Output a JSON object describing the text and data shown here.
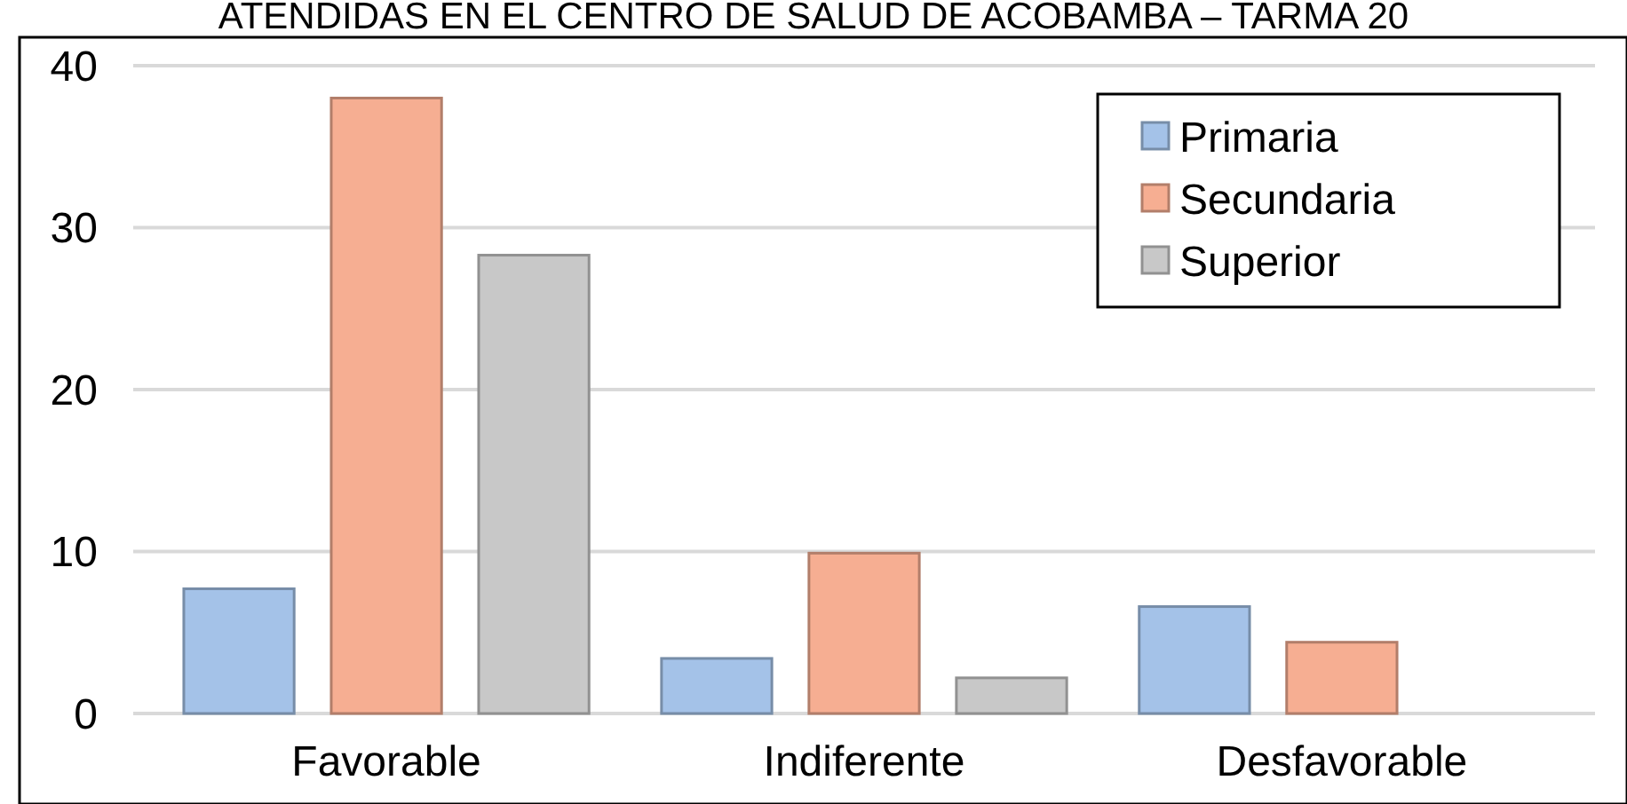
{
  "chart_data": {
    "type": "bar",
    "title": "ATENDIDAS EN EL CENTRO DE SALUD DE ACOBAMBA – TARMA 20",
    "categories": [
      "Favorable",
      "Indiferente",
      "Desfavorable"
    ],
    "series": [
      {
        "name": "Primaria",
        "color": "#a4c2e8",
        "values": [
          7.7,
          3.4,
          6.6
        ]
      },
      {
        "name": "Secundaria",
        "color": "#f6ae92",
        "values": [
          38,
          9.9,
          4.4
        ]
      },
      {
        "name": "Superior",
        "color": "#c8c8c8",
        "values": [
          28.3,
          2.2,
          0
        ]
      }
    ],
    "ylim": [
      0,
      40
    ],
    "yticks": [
      0,
      10,
      20,
      30,
      40
    ],
    "grid": "y",
    "legend": "top right"
  }
}
